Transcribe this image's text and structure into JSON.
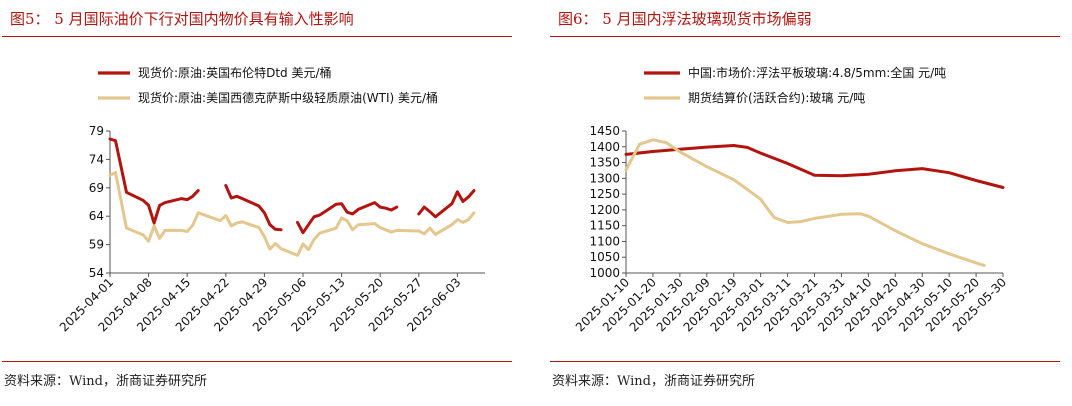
{
  "charts": [
    {
      "fig_title": "图5：  5 月国际油价下行对国内物价具有输入性影响",
      "source": "资料来源：Wind，浙商证券研究所"
    },
    {
      "fig_title": "图6：  5 月国内浮法玻璃现货市场偏弱",
      "source": "资料来源：Wind，浙商证券研究所"
    }
  ],
  "chart_data": [
    {
      "type": "line",
      "title": "图5：  5 月国际油价下行对国内物价具有输入性影响",
      "xlabel": "",
      "ylabel": "",
      "ylim": [
        54,
        79
      ],
      "yticks": [
        54,
        59,
        64,
        69,
        74,
        79
      ],
      "xlim": [
        "2025-04-01",
        "2025-06-08"
      ],
      "xticks": [
        "2025-04-01",
        "2025-04-08",
        "2025-04-15",
        "2025-04-22",
        "2025-04-29",
        "2025-05-06",
        "2025-05-13",
        "2025-05-20",
        "2025-05-27",
        "2025-06-03"
      ],
      "grid": false,
      "legend_position": "top-left",
      "series": [
        {
          "name": "现货价:原油:英国布伦特Dtd 美元/桶",
          "color": "#b2140f",
          "points": [
            [
              "2025-04-01",
              77.6
            ],
            [
              "2025-04-02",
              77.3
            ],
            [
              "2025-04-04",
              68.2
            ],
            [
              "2025-04-07",
              66.8
            ],
            [
              "2025-04-08",
              65.9
            ],
            [
              "2025-04-09",
              62.8
            ],
            [
              "2025-04-10",
              65.9
            ],
            [
              "2025-04-11",
              66.4
            ],
            [
              "2025-04-14",
              67.1
            ],
            [
              "2025-04-15",
              66.9
            ],
            [
              "2025-04-16",
              67.5
            ],
            [
              "2025-04-17",
              68.5
            ],
            [
              "2025-04-18",
              null
            ],
            [
              "2025-04-22",
              69.4
            ],
            [
              "2025-04-23",
              67.2
            ],
            [
              "2025-04-24",
              67.5
            ],
            [
              "2025-04-25",
              67.1
            ],
            [
              "2025-04-28",
              65.8
            ],
            [
              "2025-04-29",
              64.6
            ],
            [
              "2025-04-30",
              62.5
            ],
            [
              "2025-05-01",
              61.7
            ],
            [
              "2025-05-02",
              61.6
            ],
            [
              "2025-05-03",
              null
            ],
            [
              "2025-05-05",
              62.9
            ],
            [
              "2025-05-06",
              61.1
            ],
            [
              "2025-05-07",
              62.5
            ],
            [
              "2025-05-08",
              63.9
            ],
            [
              "2025-05-09",
              64.2
            ],
            [
              "2025-05-12",
              66.1
            ],
            [
              "2025-05-13",
              66.2
            ],
            [
              "2025-05-14",
              64.7
            ],
            [
              "2025-05-15",
              64.4
            ],
            [
              "2025-05-16",
              65.2
            ],
            [
              "2025-05-19",
              66.4
            ],
            [
              "2025-05-20",
              65.6
            ],
            [
              "2025-05-21",
              65.4
            ],
            [
              "2025-05-22",
              65.1
            ],
            [
              "2025-05-23",
              65.6
            ],
            [
              "2025-05-24",
              null
            ],
            [
              "2025-05-27",
              64.4
            ],
            [
              "2025-05-28",
              65.6
            ],
            [
              "2025-05-29",
              64.8
            ],
            [
              "2025-05-30",
              63.9
            ],
            [
              "2025-06-02",
              66.2
            ],
            [
              "2025-06-03",
              68.3
            ],
            [
              "2025-06-04",
              66.6
            ],
            [
              "2025-06-05",
              67.4
            ],
            [
              "2025-06-06",
              68.5
            ]
          ]
        },
        {
          "name": "现货价:原油:美国西德克萨斯中级轻质原油(WTI) 美元/桶",
          "color": "#e3c78f",
          "points": [
            [
              "2025-04-01",
              71.2
            ],
            [
              "2025-04-02",
              71.7
            ],
            [
              "2025-04-04",
              61.9
            ],
            [
              "2025-04-07",
              60.7
            ],
            [
              "2025-04-08",
              59.6
            ],
            [
              "2025-04-09",
              62.3
            ],
            [
              "2025-04-10",
              60.1
            ],
            [
              "2025-04-11",
              61.5
            ],
            [
              "2025-04-14",
              61.5
            ],
            [
              "2025-04-15",
              61.3
            ],
            [
              "2025-04-16",
              62.4
            ],
            [
              "2025-04-17",
              64.6
            ],
            [
              "2025-04-21",
              63.2
            ],
            [
              "2025-04-22",
              64.1
            ],
            [
              "2025-04-23",
              62.3
            ],
            [
              "2025-04-24",
              62.8
            ],
            [
              "2025-04-25",
              63.0
            ],
            [
              "2025-04-28",
              62.0
            ],
            [
              "2025-04-29",
              60.4
            ],
            [
              "2025-04-30",
              58.2
            ],
            [
              "2025-05-01",
              59.2
            ],
            [
              "2025-05-02",
              58.3
            ],
            [
              "2025-05-05",
              57.1
            ],
            [
              "2025-05-06",
              59.1
            ],
            [
              "2025-05-07",
              58.1
            ],
            [
              "2025-05-08",
              59.9
            ],
            [
              "2025-05-09",
              61.0
            ],
            [
              "2025-05-12",
              61.9
            ],
            [
              "2025-05-13",
              63.7
            ],
            [
              "2025-05-14",
              63.2
            ],
            [
              "2025-05-15",
              61.6
            ],
            [
              "2025-05-16",
              62.5
            ],
            [
              "2025-05-19",
              62.7
            ],
            [
              "2025-05-20",
              62.0
            ],
            [
              "2025-05-21",
              61.6
            ],
            [
              "2025-05-22",
              61.2
            ],
            [
              "2025-05-23",
              61.5
            ],
            [
              "2025-05-27",
              61.4
            ],
            [
              "2025-05-28",
              60.9
            ],
            [
              "2025-05-29",
              61.9
            ],
            [
              "2025-05-30",
              60.8
            ],
            [
              "2025-06-02",
              62.5
            ],
            [
              "2025-06-03",
              63.4
            ],
            [
              "2025-06-04",
              62.9
            ],
            [
              "2025-06-05",
              63.4
            ],
            [
              "2025-06-06",
              64.6
            ]
          ]
        }
      ]
    },
    {
      "type": "line",
      "title": "图6：  5 月国内浮法玻璃现货市场偏弱",
      "xlabel": "",
      "ylabel": "",
      "ylim": [
        1000,
        1450
      ],
      "yticks": [
        1000,
        1050,
        1100,
        1150,
        1200,
        1250,
        1300,
        1350,
        1400,
        1450
      ],
      "xlim": [
        "2025-01-10",
        "2025-05-30"
      ],
      "xticks": [
        "2025-01-10",
        "2025-01-20",
        "2025-01-30",
        "2025-02-09",
        "2025-02-19",
        "2025-03-01",
        "2025-03-11",
        "2025-03-21",
        "2025-03-31",
        "2025-04-10",
        "2025-04-20",
        "2025-04-30",
        "2025-05-10",
        "2025-05-20",
        "2025-05-30"
      ],
      "grid": false,
      "legend_position": "top-left",
      "series": [
        {
          "name": "中国:市场价:浮法平板玻璃:4.8/5mm:全国 元/吨",
          "color": "#b2140f",
          "points": [
            [
              "2025-01-10",
              1376
            ],
            [
              "2025-01-20",
              1385
            ],
            [
              "2025-01-30",
              1392
            ],
            [
              "2025-02-09",
              1399
            ],
            [
              "2025-02-19",
              1404
            ],
            [
              "2025-02-24",
              1398
            ],
            [
              "2025-03-01",
              1380
            ],
            [
              "2025-03-11",
              1347
            ],
            [
              "2025-03-21",
              1310
            ],
            [
              "2025-03-31",
              1308
            ],
            [
              "2025-04-10",
              1313
            ],
            [
              "2025-04-20",
              1324
            ],
            [
              "2025-04-30",
              1331
            ],
            [
              "2025-05-10",
              1318
            ],
            [
              "2025-05-20",
              1293
            ],
            [
              "2025-05-30",
              1271
            ]
          ]
        },
        {
          "name": "期货结算价(活跃合约):玻璃 元/吨",
          "color": "#e3c78f",
          "points": [
            [
              "2025-01-10",
              1326
            ],
            [
              "2025-01-15",
              1408
            ],
            [
              "2025-01-20",
              1422
            ],
            [
              "2025-01-25",
              1413
            ],
            [
              "2025-01-30",
              1384
            ],
            [
              "2025-02-09",
              1337
            ],
            [
              "2025-02-19",
              1296
            ],
            [
              "2025-03-01",
              1234
            ],
            [
              "2025-03-06",
              1176
            ],
            [
              "2025-03-11",
              1160
            ],
            [
              "2025-03-16",
              1163
            ],
            [
              "2025-03-21",
              1173
            ],
            [
              "2025-03-31",
              1186
            ],
            [
              "2025-04-07",
              1188
            ],
            [
              "2025-04-10",
              1180
            ],
            [
              "2025-04-20",
              1134
            ],
            [
              "2025-04-30",
              1093
            ],
            [
              "2025-05-10",
              1061
            ],
            [
              "2025-05-20",
              1032
            ],
            [
              "2025-05-23",
              1024
            ]
          ]
        }
      ]
    }
  ]
}
